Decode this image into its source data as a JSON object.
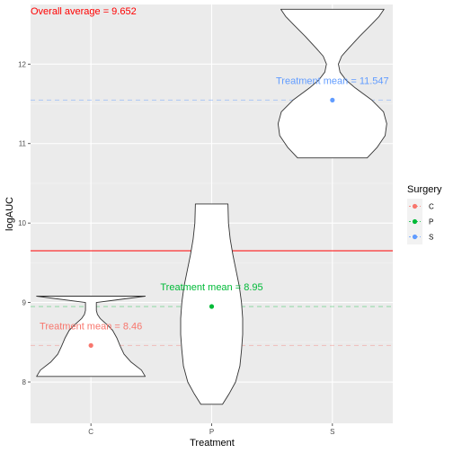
{
  "chart_data": {
    "type": "violin",
    "xlabel": "Treatment",
    "ylabel": "logAUC",
    "categories": [
      "C",
      "P",
      "S"
    ],
    "ylim": [
      7.48,
      12.75
    ],
    "yticks": [
      8,
      9,
      10,
      11,
      12
    ],
    "grid": true,
    "violins": [
      {
        "category": "C",
        "min": 8.07,
        "max": 9.08,
        "profile": [
          [
            8.07,
            1.0
          ],
          [
            8.15,
            0.93
          ],
          [
            8.25,
            0.74
          ],
          [
            8.35,
            0.61
          ],
          [
            8.45,
            0.54
          ],
          [
            8.55,
            0.48
          ],
          [
            8.65,
            0.4
          ],
          [
            8.72,
            0.3
          ],
          [
            8.8,
            0.17
          ],
          [
            8.85,
            0.12
          ],
          [
            8.9,
            0.1
          ],
          [
            9.0,
            0.1
          ],
          [
            9.08,
            1.0
          ]
        ],
        "mean": 8.46,
        "color": "#F8766D"
      },
      {
        "category": "P",
        "min": 7.72,
        "max": 10.24,
        "profile": [
          [
            7.72,
            0.2
          ],
          [
            7.85,
            0.32
          ],
          [
            8.0,
            0.44
          ],
          [
            8.2,
            0.52
          ],
          [
            8.4,
            0.55
          ],
          [
            8.6,
            0.57
          ],
          [
            8.8,
            0.57
          ],
          [
            9.0,
            0.55
          ],
          [
            9.2,
            0.51
          ],
          [
            9.4,
            0.45
          ],
          [
            9.6,
            0.39
          ],
          [
            9.8,
            0.34
          ],
          [
            10.0,
            0.31
          ],
          [
            10.24,
            0.3
          ]
        ],
        "mean": 8.95,
        "color": "#00BA38"
      },
      {
        "category": "S",
        "min": 10.82,
        "max": 12.69,
        "profile": [
          [
            10.82,
            0.64
          ],
          [
            10.95,
            0.82
          ],
          [
            11.1,
            0.97
          ],
          [
            11.25,
            1.0
          ],
          [
            11.4,
            0.94
          ],
          [
            11.55,
            0.72
          ],
          [
            11.7,
            0.42
          ],
          [
            11.8,
            0.25
          ],
          [
            11.9,
            0.14
          ],
          [
            12.0,
            0.11
          ],
          [
            12.1,
            0.17
          ],
          [
            12.2,
            0.3
          ],
          [
            12.35,
            0.5
          ],
          [
            12.5,
            0.72
          ],
          [
            12.6,
            0.86
          ],
          [
            12.69,
            0.95
          ]
        ],
        "mean": 11.547,
        "color": "#619CFF"
      }
    ],
    "reference_line": {
      "value": 9.652,
      "color": "#FF0000"
    },
    "annotations": {
      "overall": "Overall average = 9.652",
      "treatment_C": "Treatment mean = 8.46",
      "treatment_P": "Treatment mean = 8.95",
      "treatment_S": "Treatment mean = 11.547"
    },
    "legend": {
      "title": "Surgery",
      "position": "right",
      "entries": [
        {
          "label": "C",
          "color": "#F8766D"
        },
        {
          "label": "P",
          "color": "#00BA38"
        },
        {
          "label": "S",
          "color": "#619CFF"
        }
      ]
    }
  }
}
